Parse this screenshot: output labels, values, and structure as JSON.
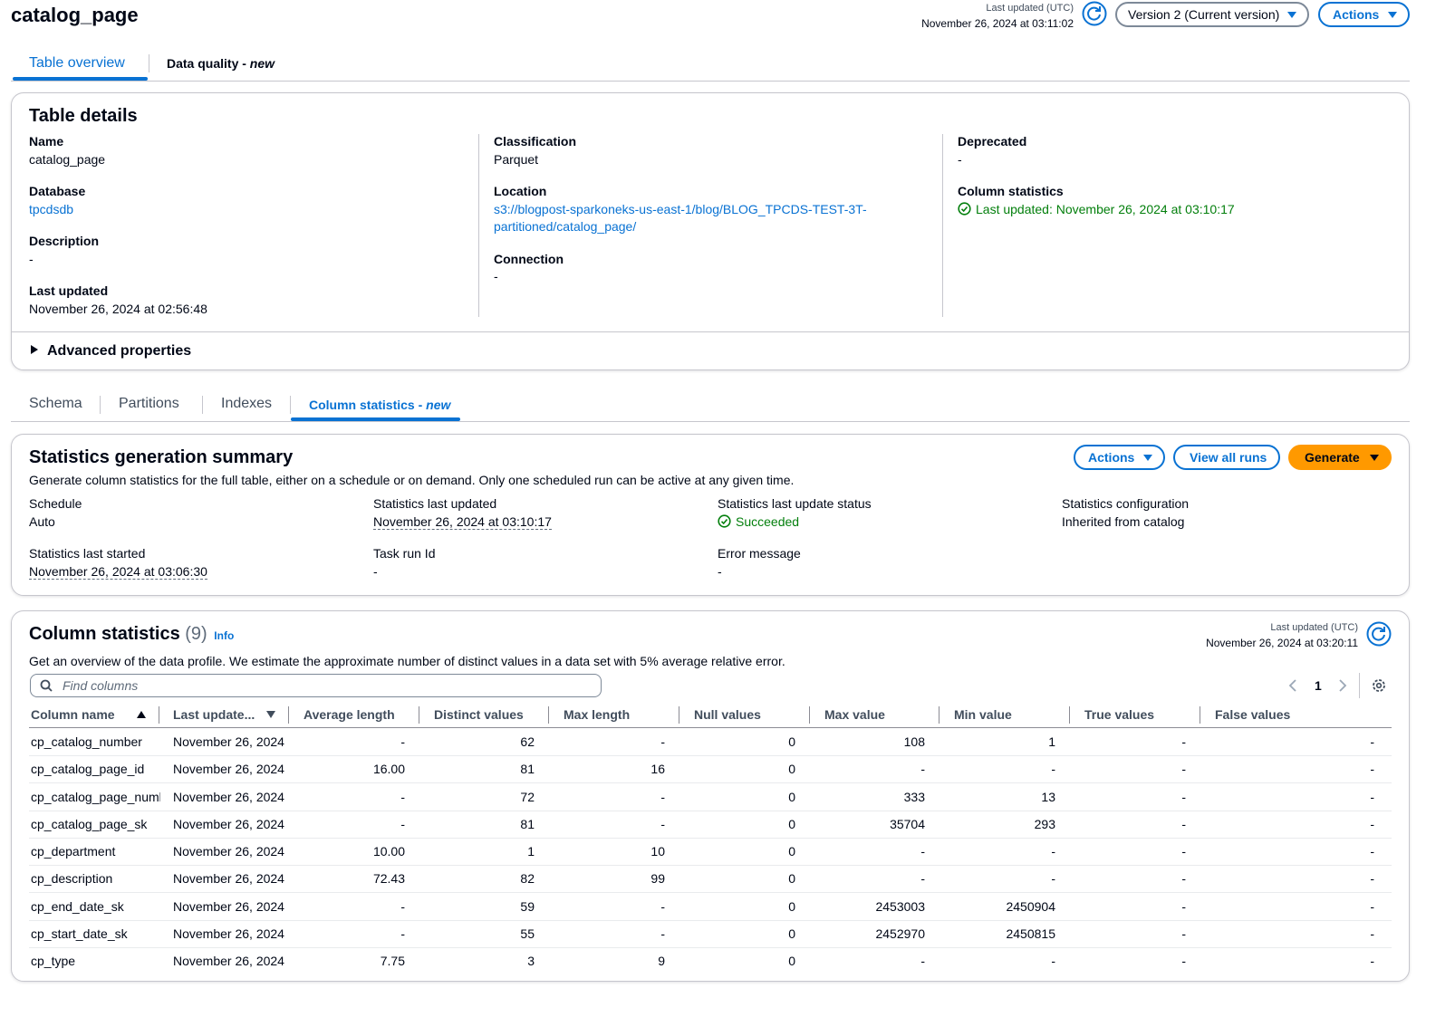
{
  "header": {
    "title": "catalog_page",
    "last_updated_label": "Last updated (UTC)",
    "last_updated": "November 26, 2024 at 03:11:02",
    "version": "Version 2 (Current version)",
    "actions": "Actions"
  },
  "tabs": [
    {
      "label": "Table overview"
    },
    {
      "label": "Data quality -",
      "badge": "new"
    }
  ],
  "table_details": {
    "title": "Table details",
    "columns": [
      [
        {
          "label": "Name",
          "value": "catalog_page"
        },
        {
          "label": "Database",
          "value": "tpcdsdb"
        },
        {
          "label": "Description",
          "value": "-"
        },
        {
          "label": "Last updated",
          "value": "November 26, 2024 at 02:56:48"
        }
      ],
      [
        {
          "label": "Classification",
          "value": "Parquet"
        },
        {
          "label": "Location",
          "value": "s3://blogpost-sparkoneks-us-east-1/blog/BLOG_TPCDS-TEST-3T-partitioned/catalog_page/"
        },
        {
          "label": "Connection",
          "value": "-"
        }
      ],
      [
        {
          "label": "Deprecated",
          "value": "-"
        },
        {
          "label": "Column statistics",
          "value": "Last updated: November 26, 2024 at 03:10:17"
        }
      ]
    ],
    "advanced": "Advanced properties"
  },
  "subtabs": [
    {
      "label": "Schema"
    },
    {
      "label": "Partitions"
    },
    {
      "label": "Indexes"
    },
    {
      "label": "Column statistics -",
      "badge": "new"
    }
  ],
  "summary": {
    "title": "Statistics generation summary",
    "description": "Generate column statistics for the full table, either on a schedule or on demand. Only one scheduled run can be active at any given time.",
    "buttons": [
      "Actions",
      "View all runs",
      "Generate"
    ],
    "fields": [
      {
        "label": "Schedule",
        "value": "Auto"
      },
      {
        "label": "Statistics last updated",
        "value": "November 26, 2024 at 03:10:17"
      },
      {
        "label": "Statistics last update status",
        "value": "Succeeded"
      },
      {
        "label": "Statistics configuration",
        "value": "Inherited from catalog"
      },
      {
        "label": "Statistics last started",
        "value": "November 26, 2024 at 03:06:30"
      },
      {
        "label": "Task run Id",
        "value": "-"
      },
      {
        "label": "Error message",
        "value": "-"
      }
    ]
  },
  "column_statistics": {
    "title": "Column statistics",
    "count": "(9)",
    "info": "Info",
    "last_updated_label": "Last updated (UTC)",
    "last_updated": "November 26, 2024 at 03:20:11",
    "description": "Get an overview of the data profile. We estimate the approximate number of distinct values in a data set with 5% average relative error.",
    "search_placeholder": "Find columns",
    "page": "1",
    "headers": [
      "Column name",
      "Last update...",
      "Average length",
      "Distinct values",
      "Max length",
      "Null values",
      "Max value",
      "Min value",
      "True values",
      "False values"
    ],
    "rows": [
      [
        "cp_catalog_number",
        "November 26, 2024",
        "-",
        "62",
        "-",
        "0",
        "108",
        "1",
        "-",
        "-"
      ],
      [
        "cp_catalog_page_id",
        "November 26, 2024",
        "16.00",
        "81",
        "16",
        "0",
        "-",
        "-",
        "-",
        "-"
      ],
      [
        "cp_catalog_page_numl",
        "November 26, 2024",
        "-",
        "72",
        "-",
        "0",
        "333",
        "13",
        "-",
        "-"
      ],
      [
        "cp_catalog_page_sk",
        "November 26, 2024",
        "-",
        "81",
        "-",
        "0",
        "35704",
        "293",
        "-",
        "-"
      ],
      [
        "cp_department",
        "November 26, 2024",
        "10.00",
        "1",
        "10",
        "0",
        "-",
        "-",
        "-",
        "-"
      ],
      [
        "cp_description",
        "November 26, 2024",
        "72.43",
        "82",
        "99",
        "0",
        "-",
        "-",
        "-",
        "-"
      ],
      [
        "cp_end_date_sk",
        "November 26, 2024",
        "-",
        "59",
        "-",
        "0",
        "2453003",
        "2450904",
        "-",
        "-"
      ],
      [
        "cp_start_date_sk",
        "November 26, 2024",
        "-",
        "55",
        "-",
        "0",
        "2452970",
        "2450815",
        "-",
        "-"
      ],
      [
        "cp_type",
        "November 26, 2024",
        "7.75",
        "3",
        "9",
        "0",
        "-",
        "-",
        "-",
        "-"
      ]
    ]
  }
}
